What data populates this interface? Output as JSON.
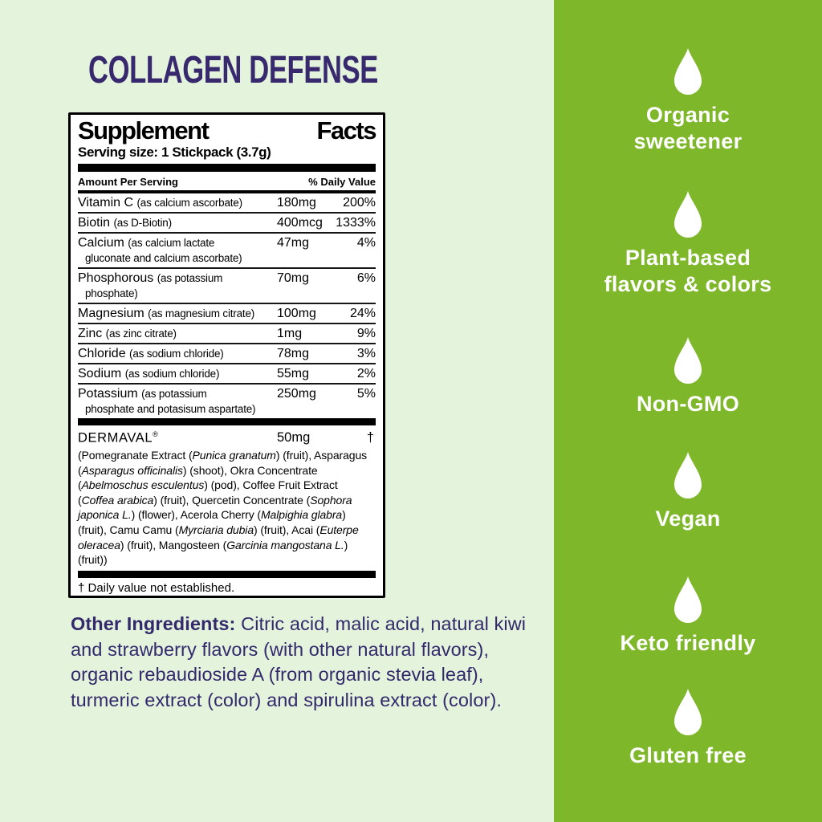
{
  "colors": {
    "page_background": "#e3f3dc",
    "sidebar_green": "#7eb72a",
    "heading_purple": "#38286e",
    "body_text_purple": "#33296b",
    "panel_border": "#000000"
  },
  "product": {
    "title": "COLLAGEN DEFENSE"
  },
  "supplement_facts": {
    "title_word_left": "Supplement",
    "title_word_right": "Facts",
    "serving_size": "Serving size: 1 Stickpack (3.7g)",
    "header": {
      "left": "Amount Per Serving",
      "right": "% Daily Value"
    },
    "rows": [
      {
        "name": "Vitamin C",
        "detail": "(as calcium ascorbate)",
        "amount": "180mg",
        "dv": "200%"
      },
      {
        "name": "Biotin",
        "detail": "(as D-Biotin)",
        "amount": "400mcg",
        "dv": "1333%"
      },
      {
        "name": "Calcium",
        "detail": "(as calcium lactate",
        "detail2": "gluconate and calcium ascorbate)",
        "amount": "47mg",
        "dv": "4%"
      },
      {
        "name": "Phosphorous",
        "detail": "(as potassium",
        "detail2": "phosphate)",
        "amount": "70mg",
        "dv": "6%"
      },
      {
        "name": "Magnesium",
        "detail": "(as magnesium citrate)",
        "amount": "100mg",
        "dv": "24%"
      },
      {
        "name": "Zinc",
        "detail": "(as zinc citrate)",
        "amount": "1mg",
        "dv": "9%"
      },
      {
        "name": "Chloride",
        "detail": "(as sodium chloride)",
        "amount": "78mg",
        "dv": "3%"
      },
      {
        "name": "Sodium",
        "detail": "(as sodium chloride)",
        "amount": "55mg",
        "dv": "2%"
      },
      {
        "name": "Potassium",
        "detail": "(as potassium",
        "detail2": "phosphate and potasisum aspartate)",
        "amount": "250mg",
        "dv": "5%"
      }
    ],
    "proprietary": {
      "name": "DERMAVAL",
      "trademark": "®",
      "amount": "50mg",
      "dv": "†"
    },
    "blend_tokens": [
      {
        "t": "(Pomegranate Extract ("
      },
      {
        "t": "Punica granatum",
        "i": true
      },
      {
        "t": ") (fruit), Asparagus ("
      },
      {
        "t": "Asparagus officinalis",
        "i": true
      },
      {
        "t": ") (shoot), Okra Concentrate ("
      },
      {
        "t": "Abelmoschus esculentus",
        "i": true
      },
      {
        "t": ") (pod), Coffee Fruit Extract ("
      },
      {
        "t": "Coffea arabica",
        "i": true
      },
      {
        "t": ") (fruit), Quercetin Concentrate ("
      },
      {
        "t": "Sophora japonica L.",
        "i": true
      },
      {
        "t": ") (flower), Acerola Cherry ("
      },
      {
        "t": "Malpighia glabra",
        "i": true
      },
      {
        "t": ") (fruit), Camu Camu ("
      },
      {
        "t": "Myrciaria dubia",
        "i": true
      },
      {
        "t": ") (fruit), Acai ("
      },
      {
        "t": "Euterpe oleracea",
        "i": true
      },
      {
        "t": ") (fruit), Mangosteen ("
      },
      {
        "t": "Garcinia mangostana L.",
        "i": true
      },
      {
        "t": ") (fruit))"
      }
    ],
    "footnote": "† Daily value not established."
  },
  "other_ingredients": {
    "label": "Other Ingredients:",
    "text": " Citric acid, malic acid, natural kiwi and strawberry flavors (with other natural flavors), organic rebaudioside A (from organic stevia leaf), turmeric extract (color) and spirulina extract (color)."
  },
  "sidebar": {
    "icon": "droplet-icon",
    "features": [
      {
        "lines": [
          "Organic",
          "sweetener"
        ]
      },
      {
        "lines": [
          "Plant-based",
          "flavors & colors"
        ]
      },
      {
        "lines": [
          "Non-GMO"
        ]
      },
      {
        "lines": [
          "Vegan"
        ]
      },
      {
        "lines": [
          "Keto friendly"
        ]
      },
      {
        "lines": [
          "Gluten free"
        ]
      }
    ]
  }
}
